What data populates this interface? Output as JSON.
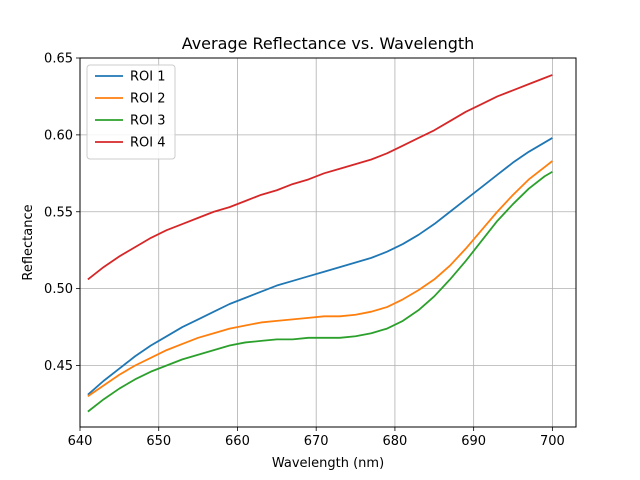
{
  "chart_data": {
    "type": "line",
    "title": "Average Reflectance vs. Wavelength",
    "xlabel": "Wavelength (nm)",
    "ylabel": "Reflectance",
    "xlim": [
      640,
      703
    ],
    "ylim": [
      0.41,
      0.65
    ],
    "xticks": [
      640,
      650,
      660,
      670,
      680,
      690,
      700
    ],
    "yticks": [
      0.45,
      0.5,
      0.55,
      0.6,
      0.65
    ],
    "xtick_labels": [
      "640",
      "650",
      "660",
      "670",
      "680",
      "690",
      "700"
    ],
    "ytick_labels": [
      "0.45",
      "0.50",
      "0.55",
      "0.60",
      "0.65"
    ],
    "grid": true,
    "legend_position": "top-left",
    "x": [
      641,
      643,
      645,
      647,
      649,
      651,
      653,
      655,
      657,
      659,
      661,
      663,
      665,
      667,
      669,
      671,
      673,
      675,
      677,
      679,
      681,
      683,
      685,
      687,
      689,
      691,
      693,
      695,
      697,
      699,
      700
    ],
    "series": [
      {
        "name": "ROI 1",
        "color": "#1f77b4",
        "values": [
          0.431,
          0.44,
          0.448,
          0.456,
          0.463,
          0.469,
          0.475,
          0.48,
          0.485,
          0.49,
          0.494,
          0.498,
          0.502,
          0.505,
          0.508,
          0.511,
          0.514,
          0.517,
          0.52,
          0.524,
          0.529,
          0.535,
          0.542,
          0.55,
          0.558,
          0.566,
          0.574,
          0.582,
          0.589,
          0.595,
          0.598
        ]
      },
      {
        "name": "ROI 2",
        "color": "#ff7f0e",
        "values": [
          0.43,
          0.437,
          0.444,
          0.45,
          0.455,
          0.46,
          0.464,
          0.468,
          0.471,
          0.474,
          0.476,
          0.478,
          0.479,
          0.48,
          0.481,
          0.482,
          0.482,
          0.483,
          0.485,
          0.488,
          0.493,
          0.499,
          0.506,
          0.515,
          0.526,
          0.538,
          0.55,
          0.561,
          0.571,
          0.579,
          0.583
        ]
      },
      {
        "name": "ROI 3",
        "color": "#2ca02c",
        "values": [
          0.42,
          0.428,
          0.435,
          0.441,
          0.446,
          0.45,
          0.454,
          0.457,
          0.46,
          0.463,
          0.465,
          0.466,
          0.467,
          0.467,
          0.468,
          0.468,
          0.468,
          0.469,
          0.471,
          0.474,
          0.479,
          0.486,
          0.495,
          0.506,
          0.518,
          0.531,
          0.544,
          0.555,
          0.565,
          0.573,
          0.576
        ]
      },
      {
        "name": "ROI 4",
        "color": "#d62728",
        "values": [
          0.506,
          0.514,
          0.521,
          0.527,
          0.533,
          0.538,
          0.542,
          0.546,
          0.55,
          0.553,
          0.557,
          0.561,
          0.564,
          0.568,
          0.571,
          0.575,
          0.578,
          0.581,
          0.584,
          0.588,
          0.593,
          0.598,
          0.603,
          0.609,
          0.615,
          0.62,
          0.625,
          0.629,
          0.633,
          0.637,
          0.639
        ]
      }
    ]
  }
}
